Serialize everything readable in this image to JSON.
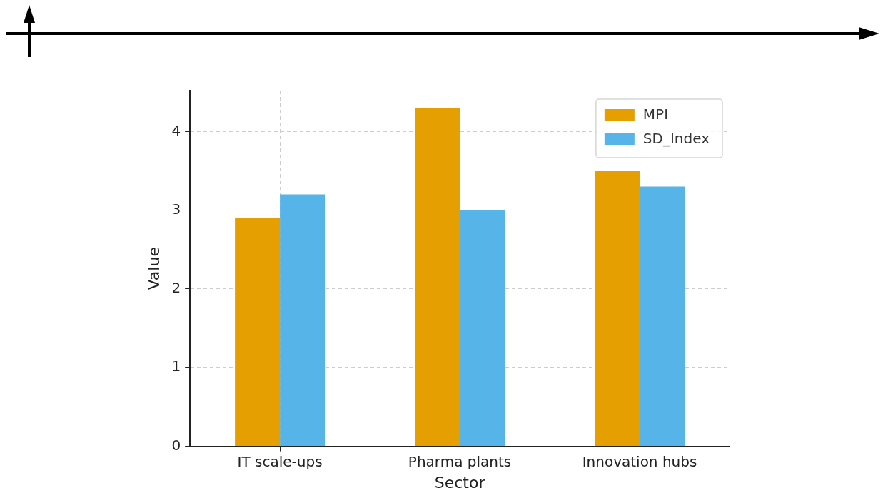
{
  "chart_data": {
    "type": "bar",
    "xlabel": "Sector",
    "ylabel": "Value",
    "categories": [
      "IT scale-ups",
      "Pharma plants",
      "Innovation hubs"
    ],
    "series": [
      {
        "name": "MPI",
        "color": "#e69f00",
        "values": [
          2.9,
          4.3,
          3.5
        ]
      },
      {
        "name": "SD_Index",
        "color": "#56b4e9",
        "values": [
          3.2,
          3.0,
          3.3
        ]
      }
    ],
    "ylim": [
      0,
      4.52
    ],
    "yticks": [
      0,
      1,
      2,
      3,
      4
    ],
    "grid": true,
    "legend": "top right"
  }
}
